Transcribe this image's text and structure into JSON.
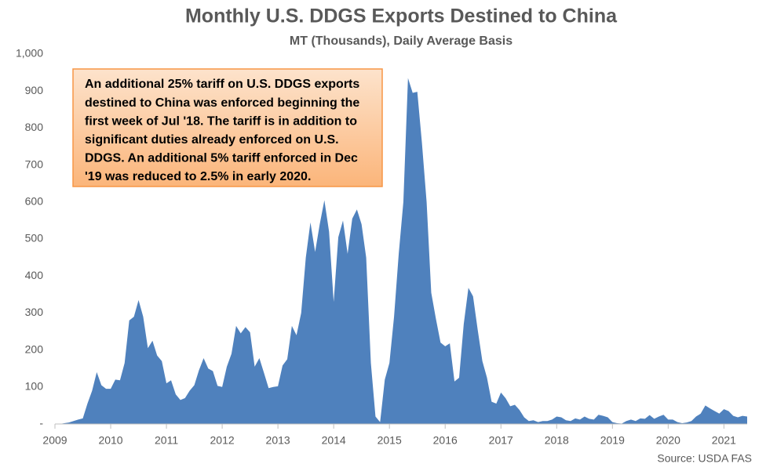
{
  "chart_data": {
    "type": "area",
    "title": "Monthly U.S. DDGS Exports Destined to China",
    "subtitle": "MT (Thousands), Daily Average Basis",
    "source": "Source: USDA FAS",
    "annotation": [
      "An additional 25% tariff on U.S. DDGS exports",
      "destined to China was enforced beginning the",
      "first week of Jul '18. The tariff is in addition to",
      "significant duties already enforced on U.S.",
      "DDGS. An additional 5% tariff enforced in Dec",
      "'19 was reduced to 2.5% in early 2020."
    ],
    "color": "#4f81bd",
    "xlim": [
      2009,
      2021.417
    ],
    "xticks": [
      2009,
      2010,
      2011,
      2012,
      2013,
      2014,
      2015,
      2016,
      2017,
      2018,
      2019,
      2020,
      2021
    ],
    "ylim": [
      0,
      1000
    ],
    "yticks": [
      {
        "value": 0,
        "label": "-"
      },
      100,
      200,
      300,
      400,
      500,
      600,
      700,
      800,
      900,
      {
        "value": 1000,
        "label": "1,000"
      }
    ],
    "x": [
      2009,
      2009.083,
      2009.167,
      2009.25,
      2009.333,
      2009.417,
      2009.5,
      2009.583,
      2009.667,
      2009.75,
      2009.833,
      2009.917,
      2010,
      2010.083,
      2010.167,
      2010.25,
      2010.333,
      2010.417,
      2010.5,
      2010.583,
      2010.667,
      2010.75,
      2010.833,
      2010.917,
      2011,
      2011.083,
      2011.167,
      2011.25,
      2011.333,
      2011.417,
      2011.5,
      2011.583,
      2011.667,
      2011.75,
      2011.833,
      2011.917,
      2012,
      2012.083,
      2012.167,
      2012.25,
      2012.333,
      2012.417,
      2012.5,
      2012.583,
      2012.667,
      2012.75,
      2012.833,
      2012.917,
      2013,
      2013.083,
      2013.167,
      2013.25,
      2013.333,
      2013.417,
      2013.5,
      2013.583,
      2013.667,
      2013.75,
      2013.833,
      2013.917,
      2014,
      2014.083,
      2014.167,
      2014.25,
      2014.333,
      2014.417,
      2014.5,
      2014.583,
      2014.667,
      2014.75,
      2014.833,
      2014.917,
      2015,
      2015.083,
      2015.167,
      2015.25,
      2015.333,
      2015.417,
      2015.5,
      2015.583,
      2015.667,
      2015.75,
      2015.833,
      2015.917,
      2016,
      2016.083,
      2016.167,
      2016.25,
      2016.333,
      2016.417,
      2016.5,
      2016.583,
      2016.667,
      2016.75,
      2016.833,
      2016.917,
      2017,
      2017.083,
      2017.167,
      2017.25,
      2017.333,
      2017.417,
      2017.5,
      2017.583,
      2017.667,
      2017.75,
      2017.833,
      2017.917,
      2018,
      2018.083,
      2018.167,
      2018.25,
      2018.333,
      2018.417,
      2018.5,
      2018.583,
      2018.667,
      2018.75,
      2018.833,
      2018.917,
      2019,
      2019.083,
      2019.167,
      2019.25,
      2019.333,
      2019.417,
      2019.5,
      2019.583,
      2019.667,
      2019.75,
      2019.833,
      2019.917,
      2020,
      2020.083,
      2020.167,
      2020.25,
      2020.333,
      2020.417,
      2020.5,
      2020.583,
      2020.667,
      2020.75,
      2020.833,
      2020.917,
      2021,
      2021.083,
      2021.167,
      2021.25,
      2021.333,
      2021.417
    ],
    "values": [
      0,
      0,
      2,
      4,
      8,
      12,
      15,
      55,
      90,
      140,
      105,
      95,
      95,
      120,
      118,
      165,
      280,
      290,
      335,
      290,
      205,
      225,
      185,
      170,
      110,
      118,
      80,
      65,
      70,
      90,
      105,
      145,
      178,
      150,
      143,
      103,
      100,
      155,
      190,
      265,
      245,
      262,
      248,
      155,
      178,
      138,
      97,
      100,
      102,
      158,
      175,
      265,
      240,
      300,
      450,
      545,
      465,
      540,
      605,
      520,
      330,
      505,
      550,
      460,
      555,
      580,
      540,
      450,
      165,
      20,
      5,
      120,
      165,
      290,
      460,
      600,
      935,
      895,
      898,
      760,
      600,
      355,
      285,
      220,
      210,
      218,
      115,
      125,
      270,
      368,
      345,
      255,
      170,
      125,
      60,
      55,
      85,
      70,
      48,
      52,
      38,
      18,
      8,
      10,
      5,
      8,
      8,
      12,
      20,
      18,
      10,
      8,
      15,
      12,
      20,
      14,
      12,
      25,
      22,
      18,
      5,
      2,
      1,
      8,
      12,
      8,
      15,
      14,
      24,
      14,
      20,
      25,
      12,
      12,
      5,
      2,
      4,
      8,
      20,
      28,
      50,
      42,
      35,
      28,
      40,
      35,
      22,
      18,
      22,
      20
    ]
  }
}
